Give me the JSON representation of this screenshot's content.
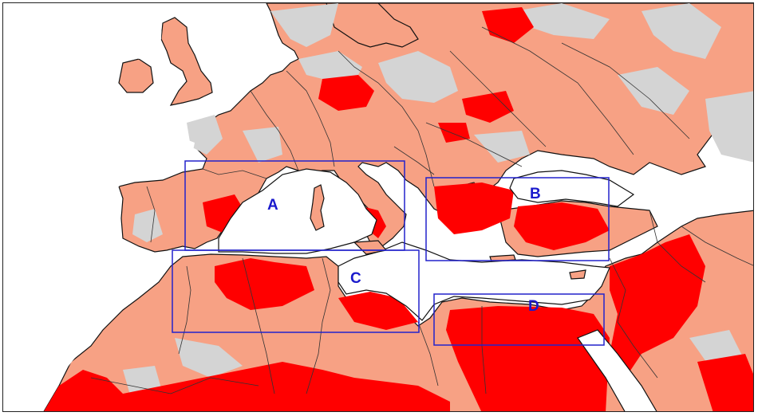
{
  "map": {
    "colors": {
      "sea": "#ffffff",
      "no_signal": "#d4d4d4",
      "moderate": "#f7a184",
      "strong": "#ff0000",
      "coast": "#111111",
      "border": "#333333",
      "box": "#2222cc",
      "label": "#1a1acc"
    },
    "regions": [
      {
        "id": "A",
        "label": "A"
      },
      {
        "id": "B",
        "label": "B"
      },
      {
        "id": "C",
        "label": "C"
      },
      {
        "id": "D",
        "label": "D"
      }
    ]
  }
}
